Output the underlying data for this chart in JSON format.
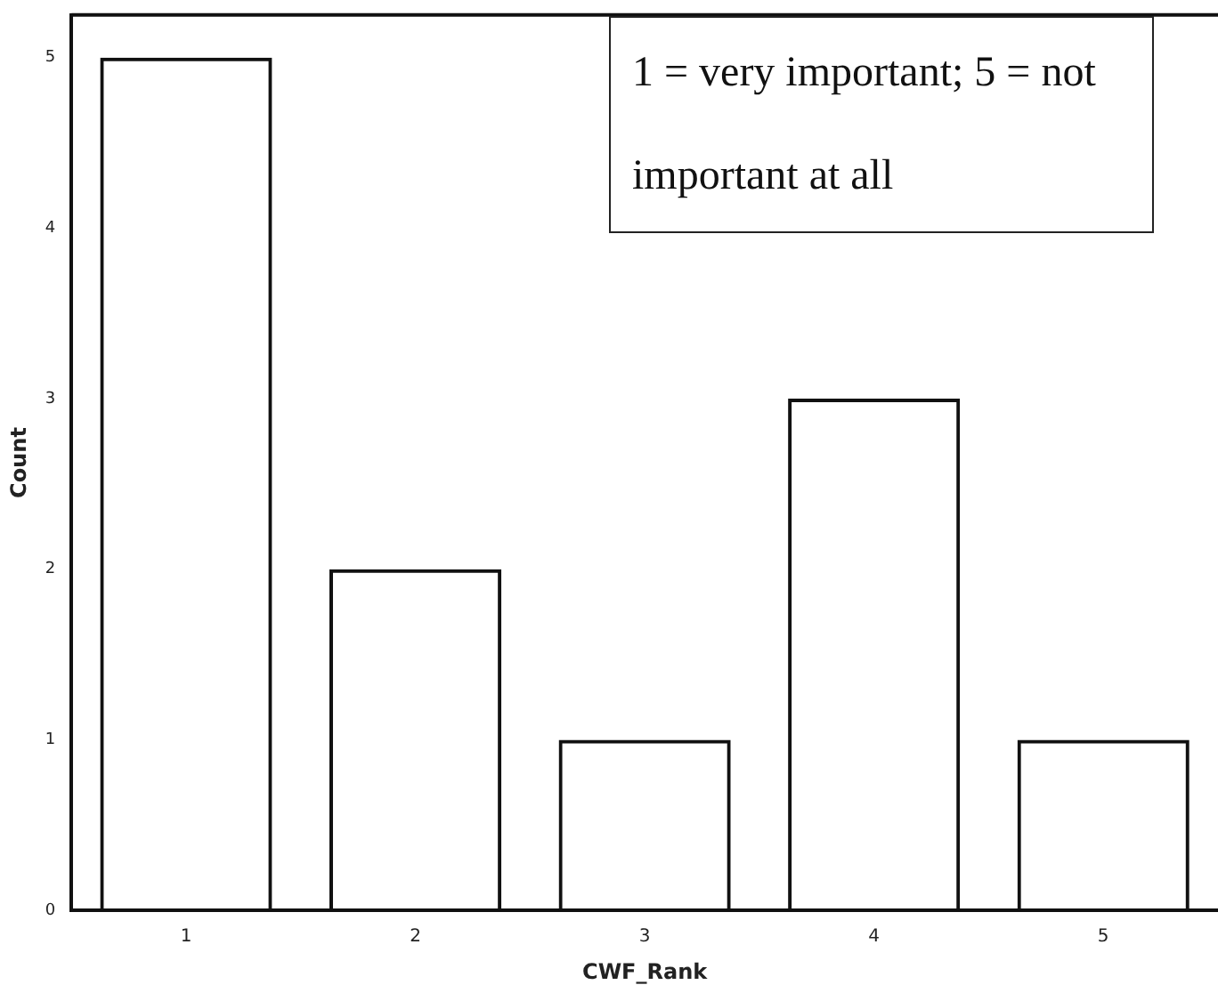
{
  "chart_data": {
    "type": "bar",
    "xlabel": "CWF_Rank",
    "ylabel": "Count",
    "categories": [
      "1",
      "2",
      "3",
      "4",
      "5"
    ],
    "values": [
      5,
      2,
      1,
      3,
      1
    ],
    "color": "#111111",
    "ylim": [
      0,
      5.25
    ],
    "yticks": [
      0,
      1,
      2,
      3,
      4,
      5
    ],
    "grid": false,
    "legend": false,
    "annotations": [
      "1 = very important; 5 = not important at all"
    ]
  }
}
